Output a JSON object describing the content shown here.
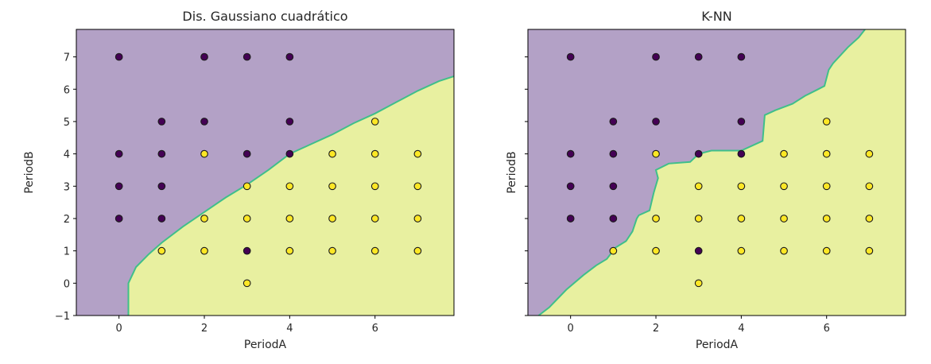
{
  "chart_data": [
    {
      "type": "scatter",
      "title": "Dis. Gaussiano cuadrático",
      "xlabel": "PeriodA",
      "ylabel": "PeriodB",
      "xlim": [
        -1,
        7.85
      ],
      "ylim": [
        -1,
        7.85
      ],
      "xticks": [
        "0",
        "2",
        "4",
        "6"
      ],
      "yticks": [
        "−1",
        "0",
        "1",
        "2",
        "3",
        "4",
        "5",
        "6",
        "7"
      ],
      "region_colors": {
        "class_0": "#b3a1c6",
        "class_1": "#e8f0a0"
      },
      "boundary_color": "#3fbf8a",
      "boundary": [
        [
          0.22,
          -1
        ],
        [
          0.22,
          0
        ],
        [
          0.4,
          0.5
        ],
        [
          0.7,
          0.9
        ],
        [
          1,
          1.25
        ],
        [
          1.5,
          1.75
        ],
        [
          2,
          2.2
        ],
        [
          2.5,
          2.65
        ],
        [
          3,
          3.05
        ],
        [
          3.5,
          3.5
        ],
        [
          4,
          4.0
        ],
        [
          4.5,
          4.3
        ],
        [
          5,
          4.6
        ],
        [
          5.5,
          4.95
        ],
        [
          6,
          5.25
        ],
        [
          6.5,
          5.6
        ],
        [
          7,
          5.95
        ],
        [
          7.5,
          6.25
        ],
        [
          7.85,
          6.4
        ]
      ],
      "point_colors": {
        "class_0": "#440154",
        "class_1": "#fde725"
      },
      "points": [
        {
          "x": 0,
          "y": 7,
          "class": 0
        },
        {
          "x": 2,
          "y": 7,
          "class": 0
        },
        {
          "x": 3,
          "y": 7,
          "class": 0
        },
        {
          "x": 4,
          "y": 7,
          "class": 0
        },
        {
          "x": 1,
          "y": 5,
          "class": 0
        },
        {
          "x": 2,
          "y": 5,
          "class": 0
        },
        {
          "x": 4,
          "y": 5,
          "class": 0
        },
        {
          "x": 6,
          "y": 5,
          "class": 1
        },
        {
          "x": 0,
          "y": 4,
          "class": 0
        },
        {
          "x": 1,
          "y": 4,
          "class": 0
        },
        {
          "x": 2,
          "y": 4,
          "class": 1
        },
        {
          "x": 3,
          "y": 4,
          "class": 0
        },
        {
          "x": 4,
          "y": 4,
          "class": 0
        },
        {
          "x": 5,
          "y": 4,
          "class": 1
        },
        {
          "x": 6,
          "y": 4,
          "class": 1
        },
        {
          "x": 7,
          "y": 4,
          "class": 1
        },
        {
          "x": 0,
          "y": 3,
          "class": 0
        },
        {
          "x": 1,
          "y": 3,
          "class": 0
        },
        {
          "x": 3,
          "y": 3,
          "class": 1
        },
        {
          "x": 4,
          "y": 3,
          "class": 1
        },
        {
          "x": 5,
          "y": 3,
          "class": 1
        },
        {
          "x": 6,
          "y": 3,
          "class": 1
        },
        {
          "x": 7,
          "y": 3,
          "class": 1
        },
        {
          "x": 0,
          "y": 2,
          "class": 0
        },
        {
          "x": 1,
          "y": 2,
          "class": 0
        },
        {
          "x": 2,
          "y": 2,
          "class": 1
        },
        {
          "x": 3,
          "y": 2,
          "class": 1
        },
        {
          "x": 4,
          "y": 2,
          "class": 1
        },
        {
          "x": 5,
          "y": 2,
          "class": 1
        },
        {
          "x": 6,
          "y": 2,
          "class": 1
        },
        {
          "x": 7,
          "y": 2,
          "class": 1
        },
        {
          "x": 1,
          "y": 1,
          "class": 1
        },
        {
          "x": 2,
          "y": 1,
          "class": 1
        },
        {
          "x": 3,
          "y": 1,
          "class": 0
        },
        {
          "x": 4,
          "y": 1,
          "class": 1
        },
        {
          "x": 5,
          "y": 1,
          "class": 1
        },
        {
          "x": 6,
          "y": 1,
          "class": 1
        },
        {
          "x": 7,
          "y": 1,
          "class": 1
        },
        {
          "x": 3,
          "y": 0,
          "class": 1
        }
      ]
    },
    {
      "type": "scatter",
      "title": "K-NN",
      "xlabel": "PeriodA",
      "ylabel": "PeriodB",
      "xlim": [
        -1,
        7.85
      ],
      "ylim": [
        -1,
        7.85
      ],
      "xticks": [
        "0",
        "2",
        "4",
        "6"
      ],
      "yticks": [
        "−1",
        "0",
        "1",
        "2",
        "3",
        "4",
        "5",
        "6",
        "7"
      ],
      "region_colors": {
        "class_0": "#b3a1c6",
        "class_1": "#e8f0a0"
      },
      "boundary_color": "#3fbf8a",
      "boundary": [
        [
          -0.75,
          -1
        ],
        [
          -0.5,
          -0.75
        ],
        [
          -0.1,
          -0.2
        ],
        [
          0.3,
          0.25
        ],
        [
          0.6,
          0.55
        ],
        [
          0.85,
          0.75
        ],
        [
          1.05,
          1.1
        ],
        [
          1.3,
          1.3
        ],
        [
          1.45,
          1.6
        ],
        [
          1.55,
          2.0
        ],
        [
          1.6,
          2.1
        ],
        [
          1.85,
          2.25
        ],
        [
          1.95,
          2.8
        ],
        [
          2.05,
          3.25
        ],
        [
          2.0,
          3.5
        ],
        [
          2.3,
          3.7
        ],
        [
          2.8,
          3.75
        ],
        [
          3.0,
          4.0
        ],
        [
          3.3,
          4.1
        ],
        [
          4.0,
          4.1
        ],
        [
          4.5,
          4.4
        ],
        [
          4.55,
          5.2
        ],
        [
          4.8,
          5.35
        ],
        [
          5.2,
          5.55
        ],
        [
          5.5,
          5.8
        ],
        [
          5.8,
          6.0
        ],
        [
          5.95,
          6.1
        ],
        [
          6.05,
          6.6
        ],
        [
          6.15,
          6.8
        ],
        [
          6.5,
          7.3
        ],
        [
          6.75,
          7.6
        ],
        [
          6.9,
          7.85
        ]
      ],
      "point_colors": {
        "class_0": "#440154",
        "class_1": "#fde725"
      },
      "points": [
        {
          "x": 0,
          "y": 7,
          "class": 0
        },
        {
          "x": 2,
          "y": 7,
          "class": 0
        },
        {
          "x": 3,
          "y": 7,
          "class": 0
        },
        {
          "x": 4,
          "y": 7,
          "class": 0
        },
        {
          "x": 1,
          "y": 5,
          "class": 0
        },
        {
          "x": 2,
          "y": 5,
          "class": 0
        },
        {
          "x": 4,
          "y": 5,
          "class": 0
        },
        {
          "x": 6,
          "y": 5,
          "class": 1
        },
        {
          "x": 0,
          "y": 4,
          "class": 0
        },
        {
          "x": 1,
          "y": 4,
          "class": 0
        },
        {
          "x": 2,
          "y": 4,
          "class": 1
        },
        {
          "x": 3,
          "y": 4,
          "class": 0
        },
        {
          "x": 4,
          "y": 4,
          "class": 0
        },
        {
          "x": 5,
          "y": 4,
          "class": 1
        },
        {
          "x": 6,
          "y": 4,
          "class": 1
        },
        {
          "x": 7,
          "y": 4,
          "class": 1
        },
        {
          "x": 0,
          "y": 3,
          "class": 0
        },
        {
          "x": 1,
          "y": 3,
          "class": 0
        },
        {
          "x": 3,
          "y": 3,
          "class": 1
        },
        {
          "x": 4,
          "y": 3,
          "class": 1
        },
        {
          "x": 5,
          "y": 3,
          "class": 1
        },
        {
          "x": 6,
          "y": 3,
          "class": 1
        },
        {
          "x": 7,
          "y": 3,
          "class": 1
        },
        {
          "x": 0,
          "y": 2,
          "class": 0
        },
        {
          "x": 1,
          "y": 2,
          "class": 0
        },
        {
          "x": 2,
          "y": 2,
          "class": 1
        },
        {
          "x": 3,
          "y": 2,
          "class": 1
        },
        {
          "x": 4,
          "y": 2,
          "class": 1
        },
        {
          "x": 5,
          "y": 2,
          "class": 1
        },
        {
          "x": 6,
          "y": 2,
          "class": 1
        },
        {
          "x": 7,
          "y": 2,
          "class": 1
        },
        {
          "x": 1,
          "y": 1,
          "class": 1
        },
        {
          "x": 2,
          "y": 1,
          "class": 1
        },
        {
          "x": 3,
          "y": 1,
          "class": 0
        },
        {
          "x": 4,
          "y": 1,
          "class": 1
        },
        {
          "x": 5,
          "y": 1,
          "class": 1
        },
        {
          "x": 6,
          "y": 1,
          "class": 1
        },
        {
          "x": 7,
          "y": 1,
          "class": 1
        },
        {
          "x": 3,
          "y": 0,
          "class": 1
        }
      ]
    }
  ]
}
